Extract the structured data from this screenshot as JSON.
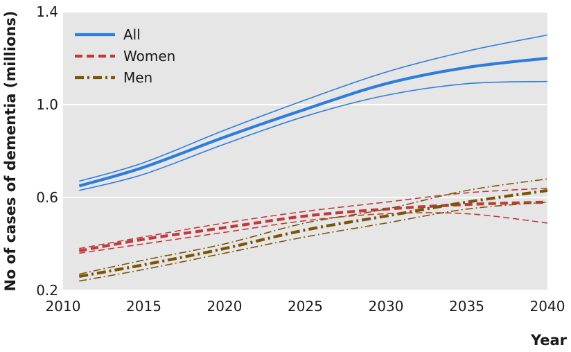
{
  "chart_data": {
    "type": "line",
    "xlabel": "Year",
    "ylabel": "No of cases of dementia (millions)",
    "xlim": [
      2010,
      2040
    ],
    "ylim": [
      0.2,
      1.4
    ],
    "x_ticks": [
      "2010",
      "2015",
      "2020",
      "2025",
      "2030",
      "2035",
      "2040"
    ],
    "y_ticks": [
      "0.2",
      "0.6",
      "1.0",
      "1.4"
    ],
    "grid": "horizontal",
    "legend_position": "top-left",
    "x": [
      2011,
      2015,
      2020,
      2025,
      2030,
      2035,
      2040
    ],
    "series": [
      {
        "name": "All",
        "color": "#2f7ddb",
        "style": "solid",
        "values": [
          0.65,
          0.73,
          0.86,
          0.98,
          1.09,
          1.16,
          1.2
        ],
        "ci_lower": [
          0.63,
          0.7,
          0.83,
          0.95,
          1.04,
          1.09,
          1.1
        ],
        "ci_upper": [
          0.67,
          0.75,
          0.89,
          1.02,
          1.14,
          1.23,
          1.3
        ]
      },
      {
        "name": "Women",
        "color": "#c0393b",
        "style": "dashed",
        "values": [
          0.37,
          0.42,
          0.47,
          0.52,
          0.55,
          0.57,
          0.58
        ],
        "ci_lower": [
          0.36,
          0.4,
          0.45,
          0.5,
          0.53,
          0.53,
          0.49
        ],
        "ci_upper": [
          0.38,
          0.43,
          0.49,
          0.54,
          0.58,
          0.62,
          0.64
        ]
      },
      {
        "name": "Men",
        "color": "#7a5508",
        "style": "dashdot",
        "values": [
          0.26,
          0.31,
          0.38,
          0.46,
          0.52,
          0.58,
          0.63
        ],
        "ci_lower": [
          0.24,
          0.29,
          0.36,
          0.43,
          0.49,
          0.55,
          0.58
        ],
        "ci_upper": [
          0.27,
          0.33,
          0.4,
          0.49,
          0.55,
          0.63,
          0.68
        ]
      }
    ]
  }
}
